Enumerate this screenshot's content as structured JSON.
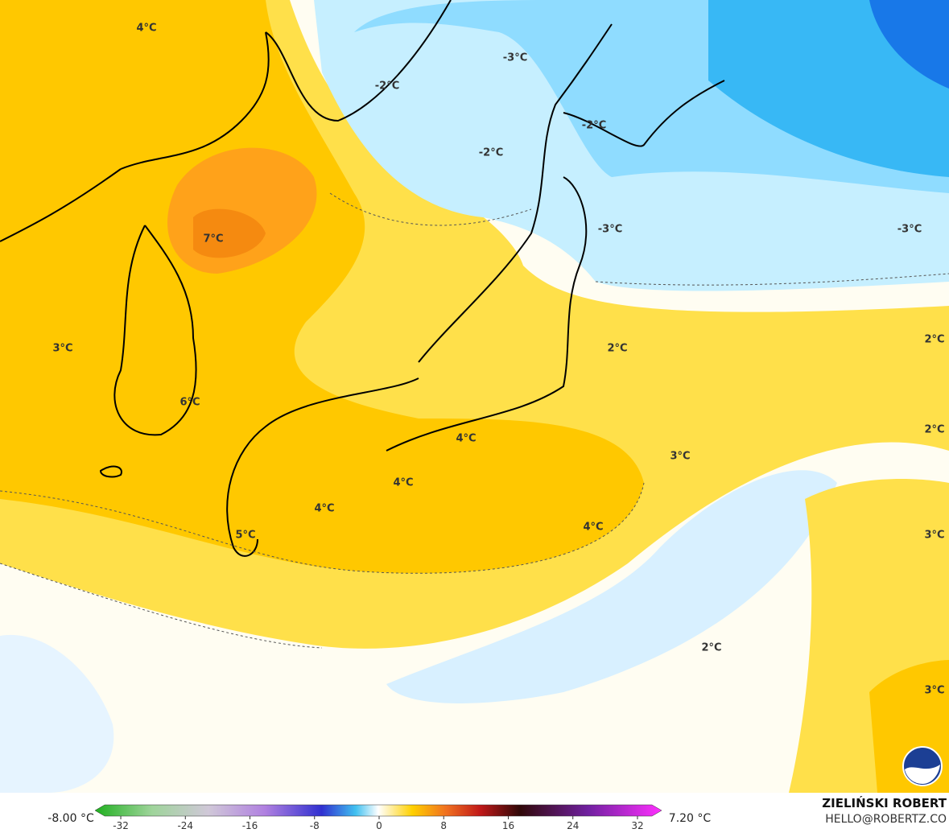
{
  "map": {
    "contour_labels": [
      "4°C",
      "-3°C",
      "-2°C",
      "-2°C",
      "-2°C",
      "7°C",
      "-3°C",
      "-3°C",
      "3°C",
      "2°C",
      "2°C",
      "6°C",
      "4°C",
      "3°C",
      "2°C",
      "4°C",
      "4°C",
      "4°C",
      "3°C",
      "5°C",
      "2°C",
      "3°C"
    ]
  },
  "colorbar": {
    "min_label": "-8.00 °C",
    "max_label": "7.20 °C",
    "ticks": [
      -32,
      -24,
      -16,
      -8,
      0,
      8,
      16,
      24,
      32
    ]
  },
  "credits": {
    "author": "ZIELIŃSKI ROBERT",
    "contact": "HELLO@ROBERTZ.CO"
  }
}
